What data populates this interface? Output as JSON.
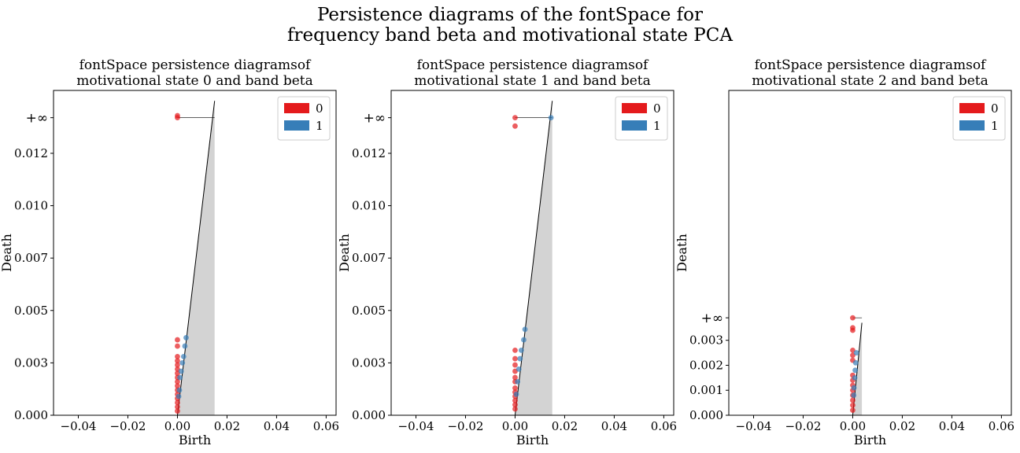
{
  "figure": {
    "suptitle_line1": "Persistence diagrams of the fontSpace for",
    "suptitle_line2": "frequency band beta and motivational state PCA"
  },
  "colors": {
    "h0": "#e41a1c",
    "h1": "#377eb8",
    "diagonal_fill": "#d3d3d3",
    "axis": "#000000"
  },
  "chart_data": [
    {
      "type": "scatter",
      "title": [
        "fontSpace persistence diagramsof",
        "motivational state 0 and band beta"
      ],
      "xlabel": "Birth",
      "ylabel": "Death",
      "xlim": [
        -0.05,
        0.064
      ],
      "ylim": [
        0.0,
        0.0155
      ],
      "xticks": [
        -0.04,
        -0.02,
        0.0,
        0.02,
        0.04,
        0.06
      ],
      "xtick_labels": [
        "−0.04",
        "−0.02",
        "0.00",
        "0.02",
        "0.04",
        "0.06"
      ],
      "yticks": [
        0.0,
        0.0025,
        0.005,
        0.0075,
        0.01,
        0.0125
      ],
      "ytick_labels": [
        "0.000",
        "0.003",
        "0.005",
        "0.007",
        "0.010",
        "0.012"
      ],
      "inf_label": "+∞",
      "inf_value": 0.0142,
      "diagonal_end": 0.015,
      "legend": {
        "location": "upper right",
        "entries": [
          "0",
          "1"
        ]
      },
      "series": [
        {
          "name": "0",
          "points": [
            [
              0.0,
              0.0142
            ],
            [
              0.0,
              0.0143
            ],
            [
              0.0,
              0.0036
            ],
            [
              0.0,
              0.0033
            ],
            [
              0.0,
              0.0028
            ],
            [
              0.0,
              0.0026
            ],
            [
              0.0,
              0.0024
            ],
            [
              0.0,
              0.0022
            ],
            [
              0.0,
              0.002
            ],
            [
              0.0,
              0.0018
            ],
            [
              0.0,
              0.0016
            ],
            [
              0.0,
              0.0014
            ],
            [
              0.0,
              0.0012
            ],
            [
              0.0,
              0.001
            ],
            [
              0.0,
              0.0008
            ],
            [
              0.0,
              0.0006
            ],
            [
              0.0,
              0.0004
            ],
            [
              0.0,
              0.0002
            ]
          ]
        },
        {
          "name": "1",
          "points": [
            [
              0.0035,
              0.0037
            ],
            [
              0.003,
              0.0033
            ],
            [
              0.0025,
              0.0028
            ],
            [
              0.002,
              0.0025
            ],
            [
              0.0015,
              0.0021
            ],
            [
              0.001,
              0.0018
            ],
            [
              0.0008,
              0.0012
            ],
            [
              0.0005,
              0.0009
            ]
          ]
        }
      ]
    },
    {
      "type": "scatter",
      "title": [
        "fontSpace persistence diagramsof",
        "motivational state 1 and band beta"
      ],
      "xlabel": "Birth",
      "ylabel": "Death",
      "xlim": [
        -0.05,
        0.064
      ],
      "ylim": [
        0.0,
        0.0155
      ],
      "xticks": [
        -0.04,
        -0.02,
        0.0,
        0.02,
        0.04,
        0.06
      ],
      "xtick_labels": [
        "−0.04",
        "−0.02",
        "0.00",
        "0.02",
        "0.04",
        "0.06"
      ],
      "yticks": [
        0.0,
        0.0025,
        0.005,
        0.0075,
        0.01,
        0.0125
      ],
      "ytick_labels": [
        "0.000",
        "0.003",
        "0.005",
        "0.007",
        "0.010",
        "0.012"
      ],
      "inf_label": "+∞",
      "inf_value": 0.0142,
      "diagonal_end": 0.015,
      "legend": {
        "location": "upper right",
        "entries": [
          "0",
          "1"
        ]
      },
      "series": [
        {
          "name": "0",
          "points": [
            [
              0.0,
              0.0142
            ],
            [
              0.0,
              0.0138
            ],
            [
              0.0,
              0.0031
            ],
            [
              0.0,
              0.0027
            ],
            [
              0.0,
              0.0024
            ],
            [
              0.0,
              0.0021
            ],
            [
              0.0,
              0.0018
            ],
            [
              0.0,
              0.0016
            ],
            [
              0.0,
              0.0013
            ],
            [
              0.0,
              0.0011
            ],
            [
              0.0,
              0.0009
            ],
            [
              0.0,
              0.0007
            ],
            [
              0.0,
              0.0005
            ],
            [
              0.0,
              0.0003
            ]
          ]
        },
        {
          "name": "1",
          "points": [
            [
              0.0145,
              0.0142
            ],
            [
              0.004,
              0.0041
            ],
            [
              0.0035,
              0.0036
            ],
            [
              0.0025,
              0.0031
            ],
            [
              0.002,
              0.0027
            ],
            [
              0.0015,
              0.0022
            ],
            [
              0.001,
              0.0016
            ],
            [
              0.0005,
              0.001
            ]
          ]
        }
      ]
    },
    {
      "type": "scatter",
      "title": [
        "fontSpace persistence diagramsof",
        "motivational state 2 and band beta"
      ],
      "xlabel": "Birth",
      "ylabel": "Death",
      "xlim": [
        -0.05,
        0.064
      ],
      "ylim": [
        0.0,
        0.013
      ],
      "xticks": [
        -0.04,
        -0.02,
        0.0,
        0.02,
        0.04,
        0.06
      ],
      "xtick_labels": [
        "−0.04",
        "−0.02",
        "0.00",
        "0.02",
        "0.04",
        "0.06"
      ],
      "yticks": [
        0.0,
        0.001,
        0.002,
        0.003
      ],
      "ytick_labels": [
        "0.000",
        "0.001",
        "0.002",
        "0.003"
      ],
      "inf_label": "+∞",
      "inf_value": 0.0039,
      "diagonal_end": 0.0037,
      "legend": {
        "location": "upper right",
        "entries": [
          "0",
          "1"
        ]
      },
      "series": [
        {
          "name": "0",
          "points": [
            [
              0.0,
              0.0039
            ],
            [
              0.0,
              0.0035
            ],
            [
              0.0,
              0.0034
            ],
            [
              0.0,
              0.0026
            ],
            [
              0.0,
              0.0024
            ],
            [
              0.0,
              0.0022
            ],
            [
              0.0,
              0.0016
            ],
            [
              0.0,
              0.0014
            ],
            [
              0.0,
              0.0012
            ],
            [
              0.0,
              0.001
            ],
            [
              0.0,
              0.0008
            ],
            [
              0.0,
              0.0006
            ],
            [
              0.0,
              0.0004
            ],
            [
              0.0,
              0.0002
            ]
          ]
        },
        {
          "name": "1",
          "points": [
            [
              0.0015,
              0.0025
            ],
            [
              0.0012,
              0.0021
            ],
            [
              0.001,
              0.0018
            ],
            [
              0.0008,
              0.0015
            ],
            [
              0.0005,
              0.0011
            ],
            [
              0.0004,
              0.0008
            ]
          ]
        }
      ]
    }
  ]
}
